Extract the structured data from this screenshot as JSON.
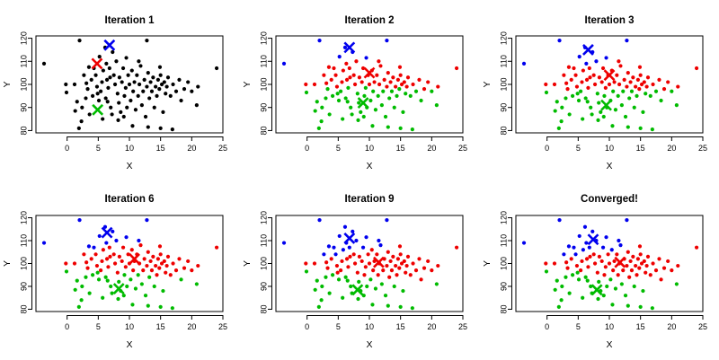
{
  "chart_data": {
    "type": "scatter",
    "xlabel": "X",
    "ylabel": "Y",
    "xlim": [
      -5,
      25
    ],
    "ylim": [
      79,
      121
    ],
    "x_ticks": [
      0,
      5,
      10,
      15,
      20,
      25
    ],
    "y_ticks": [
      80,
      90,
      100,
      110,
      120
    ],
    "colors": {
      "unassigned": "#000000",
      "cluster_1": "#0000ee",
      "cluster_2": "#ee0000",
      "cluster_3": "#00bb00"
    },
    "points": [
      [
        -3.7,
        109
      ],
      [
        2,
        119
      ],
      [
        12.8,
        119
      ],
      [
        -0.2,
        100
      ],
      [
        -0.1,
        96.5
      ],
      [
        1.2,
        100
      ],
      [
        1.6,
        92.5
      ],
      [
        1.9,
        81
      ],
      [
        2.4,
        90
      ],
      [
        2.7,
        104
      ],
      [
        3.1,
        100.5
      ],
      [
        3.3,
        98
      ],
      [
        3.6,
        87
      ],
      [
        3.9,
        102
      ],
      [
        4.1,
        95
      ],
      [
        4.3,
        107
      ],
      [
        4.6,
        104
      ],
      [
        4.8,
        99
      ],
      [
        5.1,
        93
      ],
      [
        5.2,
        112
      ],
      [
        5.4,
        97
      ],
      [
        5.6,
        101
      ],
      [
        5.8,
        106
      ],
      [
        6.1,
        116
      ],
      [
        6.2,
        94
      ],
      [
        6.4,
        102
      ],
      [
        6.6,
        98.5
      ],
      [
        6.8,
        107
      ],
      [
        7,
        90
      ],
      [
        7.2,
        87
      ],
      [
        7.3,
        114
      ],
      [
        7.5,
        104
      ],
      [
        7.7,
        100
      ],
      [
        7.9,
        110
      ],
      [
        8.1,
        96
      ],
      [
        8.3,
        92
      ],
      [
        8.4,
        103
      ],
      [
        8.6,
        88
      ],
      [
        8.8,
        101
      ],
      [
        9,
        107
      ],
      [
        9.2,
        95
      ],
      [
        9.4,
        98.5
      ],
      [
        9.6,
        90
      ],
      [
        9.8,
        104
      ],
      [
        10,
        100
      ],
      [
        10.2,
        93
      ],
      [
        10.4,
        106
      ],
      [
        10.6,
        97
      ],
      [
        10.8,
        101
      ],
      [
        11,
        89
      ],
      [
        11.2,
        104
      ],
      [
        11.4,
        95
      ],
      [
        11.6,
        100
      ],
      [
        11.8,
        108
      ],
      [
        12,
        91
      ],
      [
        12.2,
        97
      ],
      [
        12.4,
        102
      ],
      [
        12.6,
        86
      ],
      [
        12.8,
        99
      ],
      [
        13,
        105
      ],
      [
        13.2,
        94
      ],
      [
        13.4,
        101
      ],
      [
        13.6,
        97
      ],
      [
        13.8,
        103
      ],
      [
        14,
        90
      ],
      [
        14.2,
        99
      ],
      [
        14.4,
        95
      ],
      [
        14.6,
        102
      ],
      [
        14.8,
        98
      ],
      [
        15,
        104
      ],
      [
        15.2,
        100
      ],
      [
        15.4,
        88
      ],
      [
        15.6,
        101
      ],
      [
        15.8,
        96
      ],
      [
        16,
        99
      ],
      [
        16.2,
        103
      ],
      [
        16.6,
        95
      ],
      [
        17,
        100
      ],
      [
        17.5,
        97
      ],
      [
        18,
        102
      ],
      [
        18.3,
        93
      ],
      [
        18.8,
        98
      ],
      [
        19.4,
        101
      ],
      [
        20,
        97
      ],
      [
        20.8,
        91
      ],
      [
        21,
        99
      ],
      [
        24,
        107
      ],
      [
        2.3,
        84
      ],
      [
        5.7,
        85
      ],
      [
        8.2,
        84.5
      ],
      [
        10.5,
        82
      ],
      [
        13,
        81.5
      ],
      [
        15,
        81
      ],
      [
        16.9,
        80.5
      ],
      [
        6.3,
        109
      ],
      [
        4.9,
        96
      ],
      [
        6.9,
        103
      ],
      [
        9.5,
        111.5
      ],
      [
        11.5,
        110
      ],
      [
        3.5,
        107.5
      ],
      [
        14.9,
        107.5
      ],
      [
        1.3,
        88.5
      ],
      [
        3,
        94
      ],
      [
        6.5,
        92.5
      ],
      [
        9.1,
        86
      ]
    ],
    "panels": [
      {
        "title": "Iteration 1",
        "centroids": [
          {
            "cluster": 1,
            "x": 6.8,
            "y": 117
          },
          {
            "cluster": 2,
            "x": 4.8,
            "y": 109
          },
          {
            "cluster": 3,
            "x": 4.9,
            "y": 89
          }
        ]
      },
      {
        "title": "Iteration 2",
        "centroids": [
          {
            "cluster": 1,
            "x": 6.8,
            "y": 116
          },
          {
            "cluster": 2,
            "x": 10,
            "y": 105
          },
          {
            "cluster": 3,
            "x": 9,
            "y": 92
          }
        ]
      },
      {
        "title": "Iteration 3",
        "centroids": [
          {
            "cluster": 1,
            "x": 6.6,
            "y": 115
          },
          {
            "cluster": 2,
            "x": 10,
            "y": 104
          },
          {
            "cluster": 3,
            "x": 9.5,
            "y": 91
          }
        ]
      },
      {
        "title": "Iteration 6",
        "centroids": [
          {
            "cluster": 1,
            "x": 6.4,
            "y": 113.5
          },
          {
            "cluster": 2,
            "x": 10.8,
            "y": 102
          },
          {
            "cluster": 3,
            "x": 8.3,
            "y": 89
          }
        ]
      },
      {
        "title": "Iteration 9",
        "centroids": [
          {
            "cluster": 1,
            "x": 6.8,
            "y": 111
          },
          {
            "cluster": 2,
            "x": 11.5,
            "y": 100.5
          },
          {
            "cluster": 3,
            "x": 8.1,
            "y": 88.5
          }
        ]
      },
      {
        "title": "Converged!",
        "centroids": [
          {
            "cluster": 1,
            "x": 7.4,
            "y": 110.5
          },
          {
            "cluster": 2,
            "x": 11.7,
            "y": 100.5
          },
          {
            "cluster": 3,
            "x": 8,
            "y": 88.5
          }
        ]
      }
    ]
  }
}
